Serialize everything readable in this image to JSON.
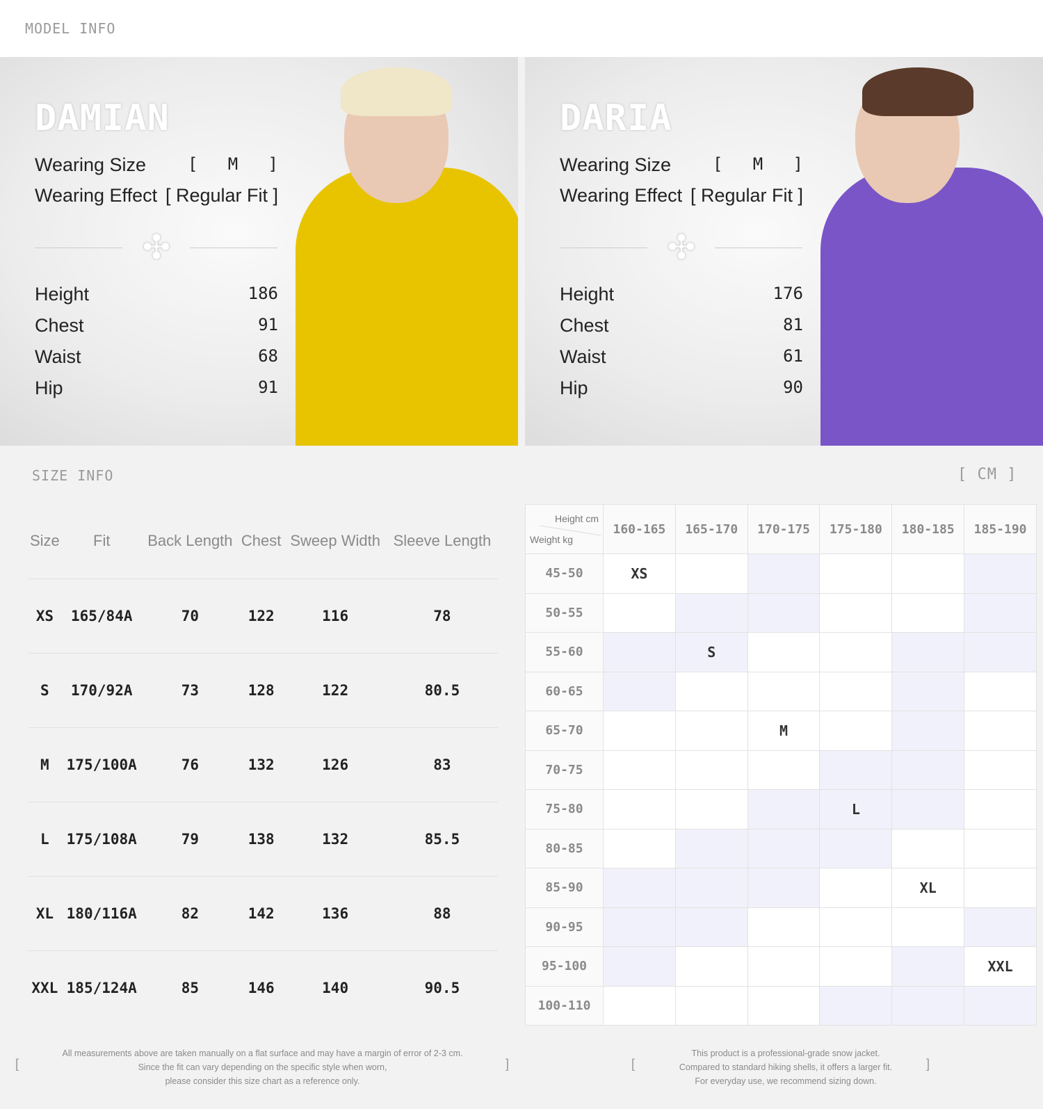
{
  "model_info": {
    "label": "MODEL INFO",
    "models": [
      {
        "name": "DAMIAN",
        "wearing_size_label": "Wearing Size",
        "wearing_size": "[   M   ]",
        "wearing_effect_label": "Wearing Effect",
        "wearing_effect": "[ Regular Fit ]",
        "measurements": [
          {
            "label": "Height",
            "value": "186"
          },
          {
            "label": "Chest",
            "value": "91"
          },
          {
            "label": "Waist",
            "value": "68"
          },
          {
            "label": "Hip",
            "value": "91"
          }
        ],
        "jacket_color": "#e8c400"
      },
      {
        "name": "DARIA",
        "wearing_size_label": "Wearing Size",
        "wearing_size": "[   M   ]",
        "wearing_effect_label": "Wearing Effect",
        "wearing_effect": "[ Regular Fit ]",
        "measurements": [
          {
            "label": "Height",
            "value": "176"
          },
          {
            "label": "Chest",
            "value": "81"
          },
          {
            "label": "Waist",
            "value": "61"
          },
          {
            "label": "Hip",
            "value": "90"
          }
        ],
        "jacket_color": "#7a55c8"
      }
    ]
  },
  "size_info": {
    "label": "SIZE INFO",
    "unit": "[ CM ]",
    "headers": [
      "Size",
      "Fit",
      "Back Length",
      "Chest",
      "Sweep Width",
      "Sleeve Length"
    ],
    "rows": [
      [
        "XS",
        "165/84A",
        "70",
        "122",
        "116",
        "78"
      ],
      [
        "S",
        "170/92A",
        "73",
        "128",
        "122",
        "80.5"
      ],
      [
        "M",
        "175/100A",
        "76",
        "132",
        "126",
        "83"
      ],
      [
        "L",
        "175/108A",
        "79",
        "138",
        "132",
        "85.5"
      ],
      [
        "XL",
        "180/116A",
        "82",
        "142",
        "136",
        "88"
      ],
      [
        "XXL",
        "185/124A",
        "85",
        "146",
        "140",
        "90.5"
      ]
    ]
  },
  "size_grid": {
    "height_label": "Height cm",
    "weight_label": "Weight kg",
    "highlight_color": "#f1f1fb",
    "heights": [
      "160-165",
      "165-170",
      "170-175",
      "175-180",
      "180-185",
      "185-190"
    ],
    "rows": [
      {
        "weight": "45-50",
        "cells": [
          "XS",
          "",
          "",
          "",
          "",
          ""
        ],
        "shaded": [
          0,
          0,
          1,
          0,
          0,
          1
        ]
      },
      {
        "weight": "50-55",
        "cells": [
          "",
          "",
          "",
          "",
          "",
          ""
        ],
        "shaded": [
          0,
          1,
          1,
          0,
          0,
          1
        ]
      },
      {
        "weight": "55-60",
        "cells": [
          "",
          "S",
          "",
          "",
          "",
          ""
        ],
        "shaded": [
          1,
          1,
          0,
          0,
          1,
          1
        ]
      },
      {
        "weight": "60-65",
        "cells": [
          "",
          "",
          "",
          "",
          "",
          ""
        ],
        "shaded": [
          1,
          0,
          0,
          0,
          1,
          0
        ]
      },
      {
        "weight": "65-70",
        "cells": [
          "",
          "",
          "M",
          "",
          "",
          ""
        ],
        "shaded": [
          0,
          0,
          0,
          0,
          1,
          0
        ]
      },
      {
        "weight": "70-75",
        "cells": [
          "",
          "",
          "",
          "",
          "",
          ""
        ],
        "shaded": [
          0,
          0,
          0,
          1,
          1,
          0
        ]
      },
      {
        "weight": "75-80",
        "cells": [
          "",
          "",
          "",
          "L",
          "",
          ""
        ],
        "shaded": [
          0,
          0,
          1,
          1,
          1,
          0
        ]
      },
      {
        "weight": "80-85",
        "cells": [
          "",
          "",
          "",
          "",
          "",
          ""
        ],
        "shaded": [
          0,
          1,
          1,
          1,
          0,
          0
        ]
      },
      {
        "weight": "85-90",
        "cells": [
          "",
          "",
          "",
          "",
          "XL",
          ""
        ],
        "shaded": [
          1,
          1,
          1,
          0,
          0,
          0
        ]
      },
      {
        "weight": "90-95",
        "cells": [
          "",
          "",
          "",
          "",
          "",
          ""
        ],
        "shaded": [
          1,
          1,
          0,
          0,
          0,
          1
        ]
      },
      {
        "weight": "95-100",
        "cells": [
          "",
          "",
          "",
          "",
          "",
          "XXL"
        ],
        "shaded": [
          1,
          0,
          0,
          0,
          1,
          0
        ]
      },
      {
        "weight": "100-110",
        "cells": [
          "",
          "",
          "",
          "",
          "",
          ""
        ],
        "shaded": [
          0,
          0,
          0,
          1,
          1,
          1
        ]
      }
    ]
  },
  "notes": {
    "left": [
      "All measurements above are taken manually on a flat surface and may have a margin of error of 2-3 cm.",
      "Since the fit can vary depending on the specific style when worn,",
      "please consider this size chart as a reference only."
    ],
    "right": [
      "This product is a professional-grade snow jacket.",
      "Compared to standard hiking shells, it offers a larger fit.",
      "For everyday use, we recommend sizing down."
    ],
    "open_bracket": "[",
    "close_bracket": "]"
  }
}
